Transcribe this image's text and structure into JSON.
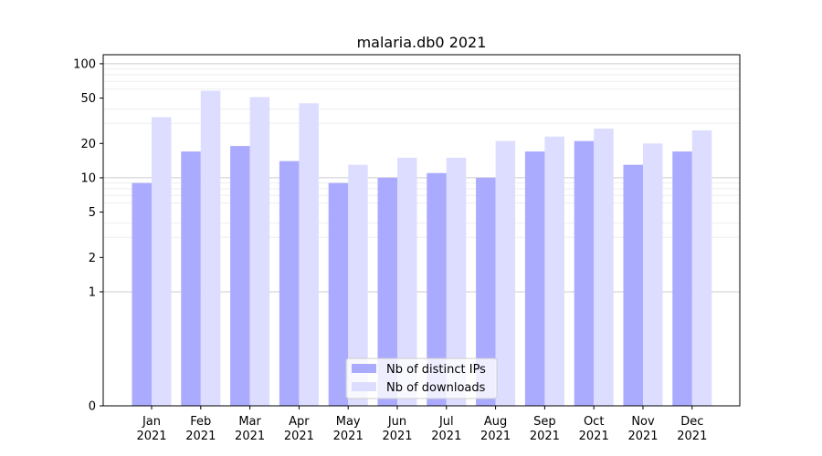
{
  "chart_data": {
    "type": "bar",
    "title": "malaria.db0 2021",
    "xlabel": "",
    "ylabel": "",
    "scale": "symlog",
    "categories": [
      [
        "Jan",
        "2021"
      ],
      [
        "Feb",
        "2021"
      ],
      [
        "Mar",
        "2021"
      ],
      [
        "Apr",
        "2021"
      ],
      [
        "May",
        "2021"
      ],
      [
        "Jun",
        "2021"
      ],
      [
        "Jul",
        "2021"
      ],
      [
        "Aug",
        "2021"
      ],
      [
        "Sep",
        "2021"
      ],
      [
        "Oct",
        "2021"
      ],
      [
        "Nov",
        "2021"
      ],
      [
        "Dec",
        "2021"
      ]
    ],
    "series": [
      {
        "name": "Nb of distinct IPs",
        "color": "#aaaaff",
        "values": [
          9,
          17,
          19,
          14,
          9,
          10,
          11,
          10,
          17,
          21,
          13,
          17
        ]
      },
      {
        "name": "Nb of downloads",
        "color": "#ddddff",
        "values": [
          34,
          58,
          51,
          45,
          13,
          15,
          15,
          21,
          23,
          27,
          20,
          26
        ]
      }
    ],
    "yticks": [
      0,
      1,
      2,
      5,
      10,
      20,
      50,
      100
    ],
    "ylim": [
      0,
      120
    ],
    "grid": true,
    "legend": "lower-center"
  }
}
